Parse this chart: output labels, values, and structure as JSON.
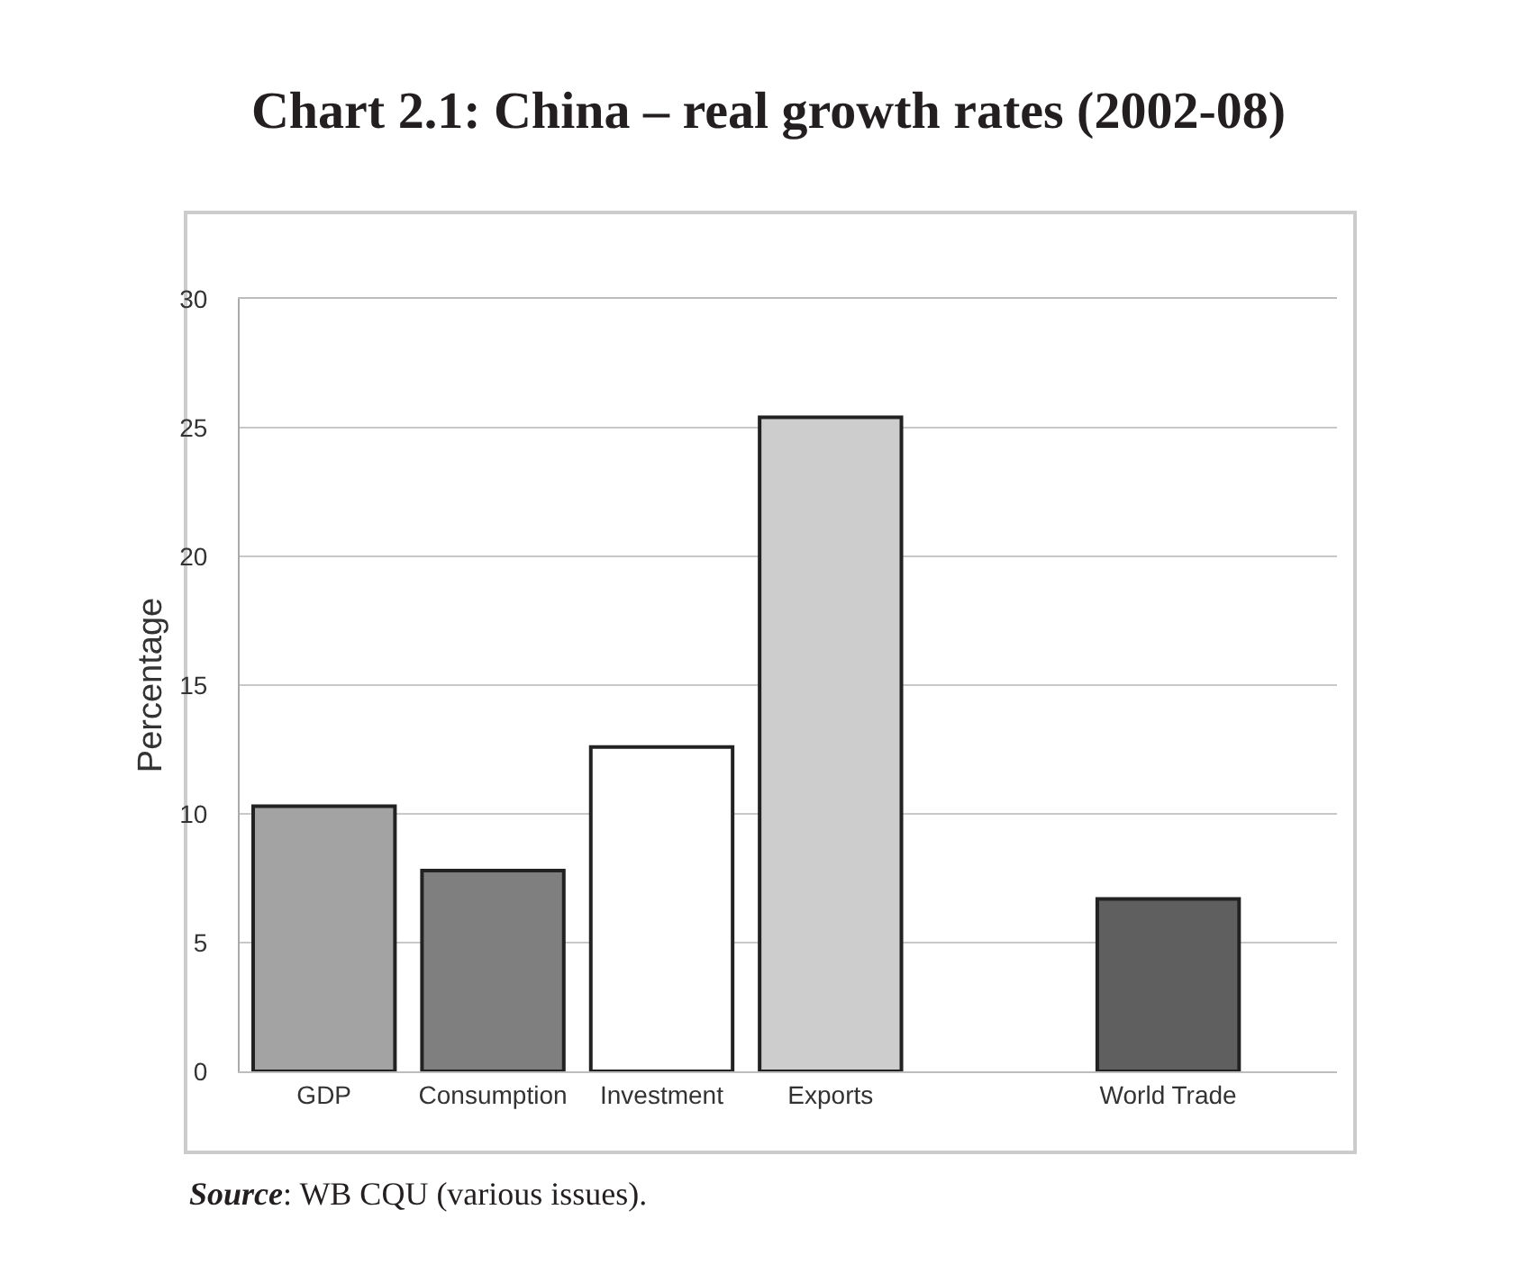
{
  "chart_data": {
    "type": "bar",
    "title": "Chart 2.1: China – real growth rates (2002-08)",
    "ylabel": "Percentage",
    "categories": [
      "GDP",
      "Consumption",
      "Investment",
      "Exports",
      null,
      "World Trade"
    ],
    "values": [
      10.3,
      7.8,
      12.6,
      25.4,
      null,
      6.7
    ],
    "colors": [
      "#a3a3a3",
      "#7f7f7f",
      "#ffffff",
      "#cdcdcd",
      null,
      "#5f5f5f"
    ],
    "ylim": [
      0,
      30
    ],
    "yticks": [
      0,
      5,
      10,
      15,
      20,
      25,
      30
    ],
    "grid": "y",
    "annotations": [
      "Source: WB CQU (various issues)."
    ]
  }
}
